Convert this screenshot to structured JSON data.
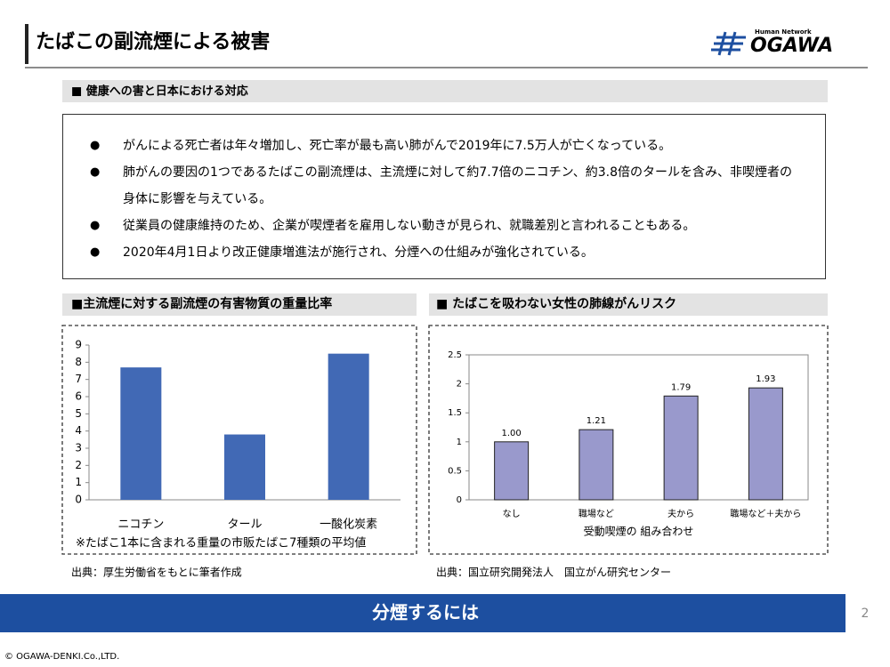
{
  "header": {
    "title": "たばこの副流煙による被害",
    "logo_tagline": "Human Network",
    "logo_name": "OGAWA"
  },
  "summary": {
    "heading": "■ 健康への害と日本における対応",
    "items": [
      "がんによる死亡者は年々増加し、死亡率が最も高い肺がんで2019年に7.5万人が亡くなっている。",
      "肺がんの要因の1つであるたばこの副流煙は、主流煙に対して約7.7倍のニコチン、約3.8倍のタールを含み、非喫煙者の身体に影響を与えている。",
      "従業員の健康維持のため、企業が喫煙者を雇用しない動きが見られ、就職差別と言われることもある。",
      "2020年4月1日より改正健康増進法が施行され、分煙への仕組みが強化されている。"
    ]
  },
  "chart_data": [
    {
      "type": "bar",
      "title": "■主流煙に対する副流煙の有害物質の重量比率",
      "categories": [
        "ニコチン",
        "タール",
        "一酸化炭素"
      ],
      "values": [
        7.7,
        3.8,
        8.5
      ],
      "color": "#4169b5",
      "ylim": [
        0,
        9
      ],
      "yticks": [
        0,
        1,
        2,
        3,
        4,
        5,
        6,
        7,
        8,
        9
      ],
      "note": "※たばこ1本に含まれる重量の市販たばこ7種類の平均値",
      "source": "出典：厚生労働省をもとに筆者作成"
    },
    {
      "type": "bar",
      "title": "■ たばこを吸わない女性の肺線がんリスク",
      "categories": [
        "なし",
        "職場など",
        "夫から",
        "職場など＋夫から"
      ],
      "values": [
        1.0,
        1.21,
        1.79,
        1.93
      ],
      "value_labels": [
        "1.00",
        "1.21",
        "1.79",
        "1.93"
      ],
      "color": "#9999cc",
      "ylim": [
        0,
        2.5
      ],
      "yticks": [
        0,
        0.5,
        1,
        1.5,
        2,
        2.5
      ],
      "xlabel": "受動喫煙の 組み合わせ",
      "source": "出典：国立研究開発法人　国立がん研究センター"
    }
  ],
  "footer": {
    "banner": "分煙するには",
    "page": "2",
    "copyright": "© OGAWA-DENKI.Co.,LTD."
  }
}
